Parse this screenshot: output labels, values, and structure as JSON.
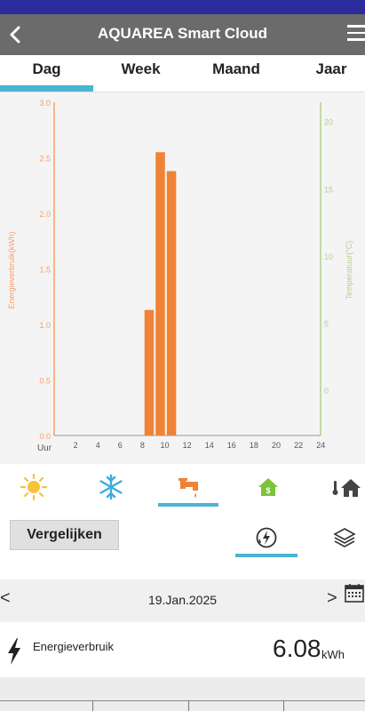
{
  "app": {
    "title": "AQUAREA Smart Cloud"
  },
  "tabs": [
    {
      "label": "Dag",
      "active": true
    },
    {
      "label": "Week",
      "active": false
    },
    {
      "label": "Maand",
      "active": false
    },
    {
      "label": "Jaar",
      "active": false
    }
  ],
  "chart_data": {
    "type": "bar",
    "x": [
      1,
      2,
      3,
      4,
      5,
      6,
      7,
      8,
      9,
      10,
      11,
      12,
      13,
      14,
      15,
      16,
      17,
      18,
      19,
      20,
      21,
      22,
      23,
      24
    ],
    "values": [
      0,
      0,
      0,
      0,
      0,
      0,
      0,
      0,
      1.13,
      2.55,
      2.38,
      0,
      0,
      0,
      0,
      0,
      0,
      0,
      0,
      0,
      0,
      0,
      0,
      0
    ],
    "x_ticks": [
      "2",
      "4",
      "6",
      "8",
      "10",
      "12",
      "14",
      "16",
      "18",
      "20",
      "22",
      "24"
    ],
    "xlabel": "Uur",
    "ylabel": "Energieverbruik(kWh)",
    "ylim": [
      0,
      3.0
    ],
    "y_ticks": [
      "0.0",
      "0.5",
      "1.0",
      "1.5",
      "2.0",
      "2.5",
      "3.0"
    ],
    "y2label": "Temperatuur(°C)",
    "y2lim": [
      -3.3,
      21.5
    ],
    "y2_ticks": [
      "0",
      "5",
      "10",
      "15",
      "20"
    ],
    "bar_color": "#f08235",
    "y_axis_color": "#f6a06a",
    "y2_axis_color": "#b5d08f",
    "grid": false
  },
  "modes": [
    {
      "icon": "sun-icon",
      "label": "heating"
    },
    {
      "icon": "snowflake-icon",
      "label": "cooling"
    },
    {
      "icon": "tap-icon",
      "label": "hot water",
      "active": true
    },
    {
      "icon": "house-money-icon",
      "label": "cost"
    },
    {
      "icon": "thermometer-house-icon",
      "label": "temperature"
    }
  ],
  "compare": {
    "button_label": "Vergelijken"
  },
  "date": {
    "prev": "<",
    "next": ">",
    "value": "19.Jan.2025"
  },
  "summary": {
    "label": "Energieverbruik",
    "value": "6.08",
    "unit": "kWh"
  },
  "colors": {
    "header": "#6b6b6b",
    "status_bar": "#2c2c9c",
    "accent": "#4ab4d4",
    "bar": "#f08235"
  }
}
